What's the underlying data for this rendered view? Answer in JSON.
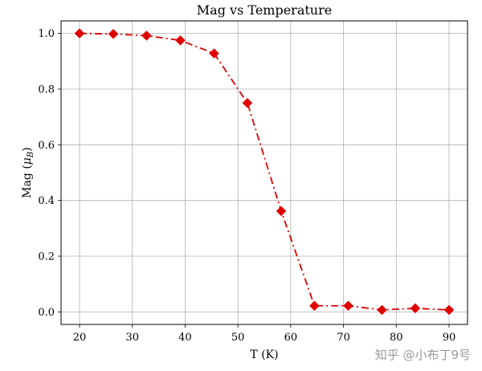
{
  "chart_data": {
    "type": "line",
    "title": "Mag vs Temperature",
    "xlabel": "T (K)",
    "ylabel_main": "Mag (",
    "ylabel_mu": "μ",
    "ylabel_sub": "B",
    "ylabel_close": ")",
    "xlim": [
      16.5,
      93.5
    ],
    "ylim": [
      -0.045,
      1.045
    ],
    "xticks": [
      20,
      30,
      40,
      50,
      60,
      70,
      80,
      90
    ],
    "yticks": [
      0.0,
      0.2,
      0.4,
      0.6,
      0.8,
      1.0
    ],
    "grid": true,
    "series": [
      {
        "color": "#e00000",
        "line_style": "dash-dot",
        "marker": "diamond",
        "x": [
          20.0,
          26.4,
          32.7,
          39.1,
          45.5,
          51.8,
          58.2,
          64.5,
          70.9,
          77.3,
          83.6,
          90.0
        ],
        "y": [
          1.0,
          0.998,
          0.992,
          0.975,
          0.928,
          0.75,
          0.362,
          0.022,
          0.022,
          0.007,
          0.013,
          0.007
        ]
      }
    ]
  },
  "watermark": "知乎 @小布丁9号"
}
